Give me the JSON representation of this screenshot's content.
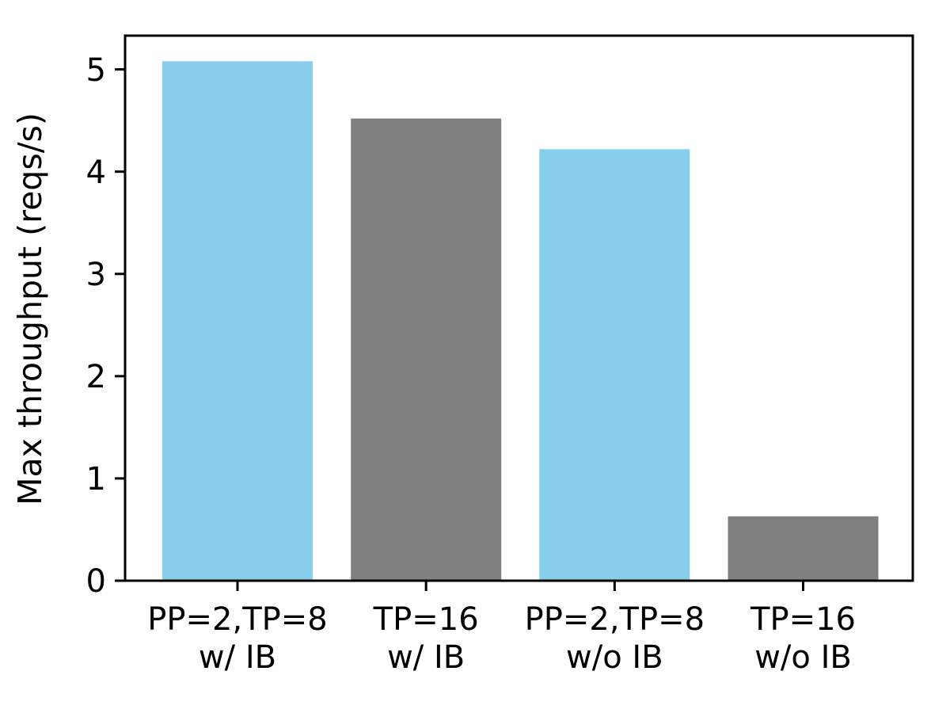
{
  "chart_data": {
    "type": "bar",
    "title": "",
    "xlabel": "",
    "ylabel": "Max throughput (reqs/s)",
    "categories": [
      "PP=2,TP=8\nw/ IB",
      "TP=16\nw/ IB",
      "PP=2,TP=8\nw/o IB",
      "TP=16\nw/o IB"
    ],
    "values": [
      5.08,
      4.52,
      4.22,
      0.63
    ],
    "bar_colors": [
      "#87CEEB",
      "#808080",
      "#87CEEB",
      "#808080"
    ],
    "yticks": [
      0,
      1,
      2,
      3,
      4,
      5
    ],
    "ytick_labels": [
      "0",
      "1",
      "2",
      "3",
      "4",
      "5"
    ],
    "ylim": [
      0,
      5.33
    ],
    "grid": false,
    "legend": "none"
  },
  "colors": {
    "bar_blue": "#87CEEB",
    "bar_gray": "#808080",
    "axis": "#000000",
    "background": "#ffffff"
  }
}
